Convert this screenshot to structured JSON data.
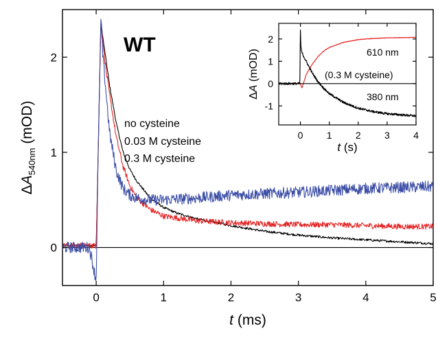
{
  "chart_data": {
    "type": "line",
    "main": {
      "panel_label": "WT",
      "xlabel_var": "t",
      "xlabel_unit": " (ms)",
      "ylabel_prefix": "Δ",
      "ylabel_var": "A",
      "ylabel_sub": "540nm",
      "ylabel_unit": " (mOD)",
      "xlim": [
        -0.5,
        5
      ],
      "ylim": [
        -0.4,
        2.5
      ],
      "xticks": [
        0,
        1,
        2,
        3,
        4,
        5
      ],
      "yticks": [
        0,
        1,
        2
      ],
      "baseline": 0,
      "series": [
        {
          "name": "no cysteine",
          "color": "#000000",
          "x": [
            -0.5,
            0.0,
            0.03,
            0.07,
            0.1,
            0.15,
            0.2,
            0.3,
            0.4,
            0.5,
            0.6,
            0.8,
            1.0,
            1.2,
            1.5,
            2.0,
            2.5,
            3.0,
            3.5,
            4.0,
            4.5,
            5.0
          ],
          "y": [
            0.02,
            0.02,
            1.0,
            2.38,
            2.2,
            1.95,
            1.7,
            1.3,
            1.0,
            0.82,
            0.7,
            0.52,
            0.42,
            0.36,
            0.3,
            0.23,
            0.17,
            0.13,
            0.1,
            0.08,
            0.06,
            0.04
          ],
          "noise": 0.012
        },
        {
          "name": "0.03 M cysteine",
          "color": "#e32626",
          "x": [
            -0.5,
            0.0,
            0.03,
            0.07,
            0.1,
            0.15,
            0.2,
            0.3,
            0.4,
            0.5,
            0.6,
            0.8,
            1.0,
            1.5,
            2.0,
            2.5,
            3.0,
            3.5,
            4.0,
            4.5,
            5.0
          ],
          "y": [
            0.02,
            0.02,
            1.0,
            2.38,
            2.15,
            1.85,
            1.6,
            1.15,
            0.85,
            0.65,
            0.52,
            0.4,
            0.33,
            0.28,
            0.26,
            0.25,
            0.24,
            0.24,
            0.23,
            0.22,
            0.22
          ],
          "noise": 0.03
        },
        {
          "name": "0.3 M cysteine",
          "color": "#3c4ea6",
          "x": [
            -0.5,
            -0.1,
            0.0,
            0.03,
            0.07,
            0.1,
            0.15,
            0.2,
            0.3,
            0.4,
            0.5,
            0.6,
            0.8,
            1.0,
            1.5,
            2.0,
            3.0,
            4.0,
            5.0
          ],
          "y": [
            0.0,
            0.0,
            -0.35,
            1.0,
            2.4,
            2.0,
            1.6,
            1.2,
            0.8,
            0.62,
            0.55,
            0.52,
            0.5,
            0.5,
            0.52,
            0.55,
            0.58,
            0.62,
            0.64
          ],
          "noise": 0.06
        }
      ]
    },
    "inset": {
      "xlabel_var": "t",
      "xlabel_unit": " (s)",
      "ylabel_prefix": "Δ",
      "ylabel_var": "A",
      "ylabel_unit": " (mOD)",
      "xlim": [
        -0.75,
        4
      ],
      "ylim": [
        -1.85,
        2.7
      ],
      "xticks": [
        0,
        1,
        2,
        3,
        4
      ],
      "yticks": [
        -1,
        0,
        1,
        2
      ],
      "baseline": 0,
      "annotations": [
        "610 nm",
        "(0.3 M cysteine)",
        "380 nm"
      ],
      "series": [
        {
          "name": "610 nm",
          "color": "#e32626",
          "x": [
            -0.75,
            0.0,
            0.05,
            0.2,
            0.4,
            0.6,
            0.8,
            1.0,
            1.5,
            2.0,
            2.5,
            3.0,
            3.5,
            4.0
          ],
          "y": [
            0.0,
            0.0,
            -0.2,
            0.4,
            0.85,
            1.2,
            1.45,
            1.62,
            1.85,
            1.97,
            2.02,
            2.05,
            2.06,
            2.07
          ],
          "noise": 0.01
        },
        {
          "name": "380 nm",
          "color": "#000000",
          "x": [
            -0.75,
            -0.02,
            0.0,
            0.02,
            0.05,
            0.1,
            0.2,
            0.4,
            0.6,
            0.8,
            1.0,
            1.5,
            2.0,
            2.5,
            3.0,
            3.5,
            4.0
          ],
          "y": [
            0.0,
            0.0,
            2.4,
            1.6,
            1.4,
            1.25,
            1.0,
            0.5,
            0.1,
            -0.2,
            -0.45,
            -0.85,
            -1.1,
            -1.25,
            -1.35,
            -1.4,
            -1.45
          ],
          "noise": 0.05
        }
      ]
    }
  }
}
